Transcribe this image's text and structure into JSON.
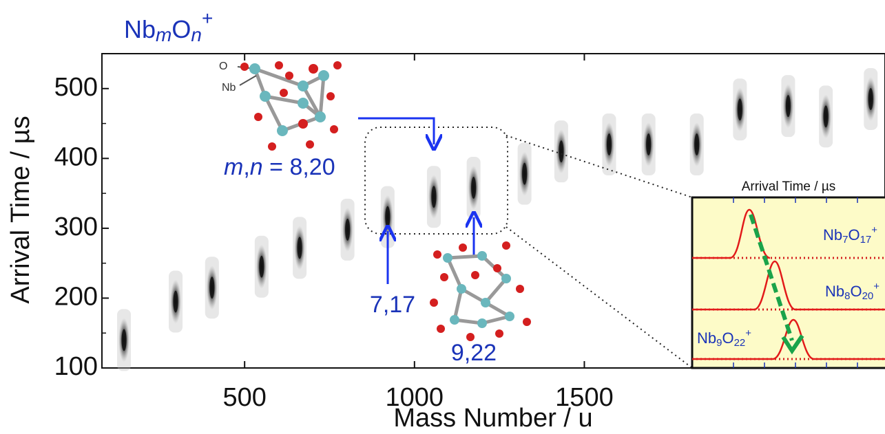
{
  "chart_data": {
    "type": "scatter",
    "title_parts": [
      "Nb",
      "m",
      "O",
      "n",
      "+"
    ],
    "x_label": "Mass Number / u",
    "y_label": "Arrival Time / µs",
    "xlim": [
      80,
      2385
    ],
    "ylim": [
      100,
      550
    ],
    "xticks": [
      500,
      1000,
      1500
    ],
    "yticks": [
      100,
      200,
      300,
      400,
      500
    ],
    "grid": false,
    "color": "#111111",
    "x": [
      145,
      297,
      404,
      550,
      662,
      803,
      921,
      1057,
      1174,
      1324,
      1432,
      1573,
      1689,
      1831,
      1958,
      2100,
      2211,
      2343
    ],
    "values": [
      140,
      195,
      215,
      245,
      272,
      298,
      316,
      345,
      358,
      378,
      410,
      420,
      420,
      420,
      470,
      475,
      460,
      485
    ],
    "annotations": {
      "o_atom": "O",
      "nb_atom": "Nb",
      "mn_label": [
        "m",
        ",",
        "n",
        " = 8,20"
      ],
      "label_7_17": "7,17",
      "label_9_22": "9,22"
    },
    "inset": {
      "title": "Arrival Time / µs",
      "labels": [
        [
          "Nb",
          "7",
          "O",
          "17",
          "+"
        ],
        [
          "Nb",
          "8",
          "O",
          "20",
          "+"
        ],
        [
          "Nb",
          "9",
          "O",
          "22",
          "+"
        ]
      ]
    }
  }
}
